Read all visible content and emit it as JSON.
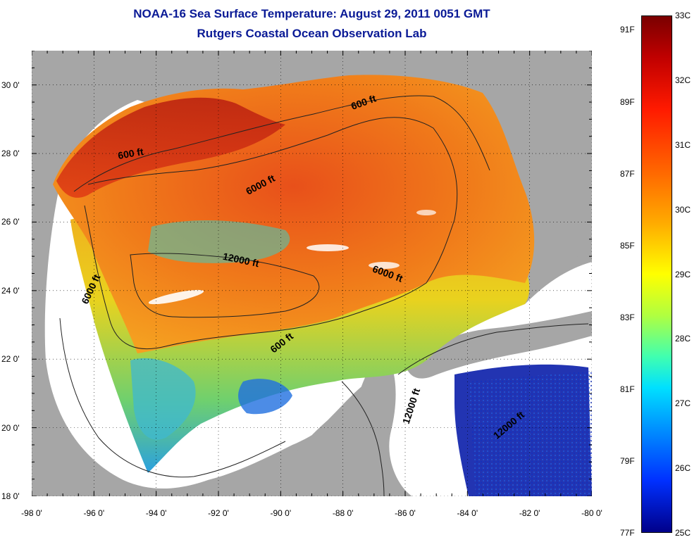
{
  "header": {
    "title": "NOAA-16 Sea Surface Temperature:  August 29, 2011 0051 GMT",
    "subtitle": "Rutgers Coastal Ocean Observation Lab"
  },
  "map": {
    "lon_range": [
      -98,
      -80
    ],
    "lat_range": [
      18,
      31
    ],
    "x_ticks": [
      {
        "value": -98,
        "label": "-98 0'"
      },
      {
        "value": -96,
        "label": "-96 0'"
      },
      {
        "value": -94,
        "label": "-94 0'"
      },
      {
        "value": -92,
        "label": "-92 0'"
      },
      {
        "value": -90,
        "label": "-90 0'"
      },
      {
        "value": -88,
        "label": "-88 0'"
      },
      {
        "value": -86,
        "label": "-86 0'"
      },
      {
        "value": -84,
        "label": "-84 0'"
      },
      {
        "value": -82,
        "label": "-82 0'"
      },
      {
        "value": -80,
        "label": "-80 0'"
      }
    ],
    "y_ticks": [
      {
        "value": 30,
        "label": "30 0'"
      },
      {
        "value": 28,
        "label": "28 0'"
      },
      {
        "value": 26,
        "label": "26 0'"
      },
      {
        "value": 24,
        "label": "24 0'"
      },
      {
        "value": 22,
        "label": "22 0'"
      },
      {
        "value": 20,
        "label": "20 0'"
      },
      {
        "value": 18,
        "label": "18 0'"
      }
    ],
    "contour_labels": [
      {
        "text": "600 ft",
        "lon": -87.3,
        "lat": 29.4,
        "angle": -20
      },
      {
        "text": "600 ft",
        "lon": -94.8,
        "lat": 27.9,
        "angle": -10
      },
      {
        "text": "6000 ft",
        "lon": -90.6,
        "lat": 27.0,
        "angle": -28
      },
      {
        "text": "12000 ft",
        "lon": -91.3,
        "lat": 24.8,
        "angle": 12
      },
      {
        "text": "6000 ft",
        "lon": -96.0,
        "lat": 24.0,
        "angle": -65
      },
      {
        "text": "6000 ft",
        "lon": -86.6,
        "lat": 24.4,
        "angle": 20
      },
      {
        "text": "600 ft",
        "lon": -89.9,
        "lat": 22.4,
        "angle": -38
      },
      {
        "text": "12000 ft",
        "lon": -85.7,
        "lat": 20.6,
        "angle": -72
      },
      {
        "text": "12000 ft",
        "lon": -82.6,
        "lat": 20.0,
        "angle": -40
      }
    ],
    "colors": {
      "land": "#a6a6a6",
      "no_data": "#ffffff",
      "contour": "#222222"
    }
  },
  "colorbar": {
    "fahrenheit_labels": [
      {
        "value": 91,
        "label": "91F"
      },
      {
        "value": 89,
        "label": "89F"
      },
      {
        "value": 87,
        "label": "87F"
      },
      {
        "value": 85,
        "label": "85F"
      },
      {
        "value": 83,
        "label": "83F"
      },
      {
        "value": 81,
        "label": "81F"
      },
      {
        "value": 79,
        "label": "79F"
      },
      {
        "value": 77,
        "label": "77F"
      }
    ],
    "celsius_labels": [
      {
        "value": 33,
        "label": "33C"
      },
      {
        "value": 32,
        "label": "32C"
      },
      {
        "value": 31,
        "label": "31C"
      },
      {
        "value": 30,
        "label": "30C"
      },
      {
        "value": 29,
        "label": "29C"
      },
      {
        "value": 28,
        "label": "28C"
      },
      {
        "value": 27,
        "label": "27C"
      },
      {
        "value": 26,
        "label": "26C"
      },
      {
        "value": 25,
        "label": "25C"
      }
    ]
  }
}
